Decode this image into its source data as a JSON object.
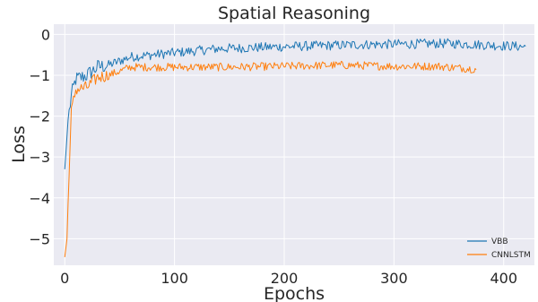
{
  "chart_data": {
    "type": "line",
    "title": "Spatial Reasoning",
    "xlabel": "Epochs",
    "ylabel": "Loss",
    "xlim": [
      -10,
      428
    ],
    "ylim": [
      -5.65,
      0.25
    ],
    "xticks": [
      0,
      100,
      200,
      300,
      400
    ],
    "yticks": [
      0,
      -1,
      -2,
      -3,
      -4,
      -5
    ],
    "grid": true,
    "legend_position": "bottom-right",
    "series": [
      {
        "name": "VBB",
        "color": "#1f77b4",
        "x_end": 420,
        "anchors": [
          [
            0,
            -3.3
          ],
          [
            3,
            -2.1
          ],
          [
            6,
            -1.5
          ],
          [
            10,
            -1.1
          ],
          [
            15,
            -1.05
          ],
          [
            20,
            -1.0
          ],
          [
            30,
            -0.8
          ],
          [
            40,
            -0.75
          ],
          [
            60,
            -0.55
          ],
          [
            80,
            -0.5
          ],
          [
            100,
            -0.45
          ],
          [
            140,
            -0.35
          ],
          [
            200,
            -0.3
          ],
          [
            270,
            -0.25
          ],
          [
            350,
            -0.22
          ],
          [
            420,
            -0.3
          ]
        ],
        "noise": 0.12
      },
      {
        "name": "CNNLSTM",
        "color": "#ff7f0e",
        "x_end": 375,
        "anchors": [
          [
            0,
            -5.45
          ],
          [
            2,
            -5.0
          ],
          [
            4,
            -3.3
          ],
          [
            6,
            -1.9
          ],
          [
            10,
            -1.35
          ],
          [
            20,
            -1.3
          ],
          [
            30,
            -1.05
          ],
          [
            40,
            -1.0
          ],
          [
            60,
            -0.8
          ],
          [
            100,
            -0.8
          ],
          [
            150,
            -0.8
          ],
          [
            200,
            -0.78
          ],
          [
            250,
            -0.75
          ],
          [
            300,
            -0.78
          ],
          [
            340,
            -0.78
          ],
          [
            375,
            -0.85
          ]
        ],
        "noise": 0.1
      }
    ]
  }
}
